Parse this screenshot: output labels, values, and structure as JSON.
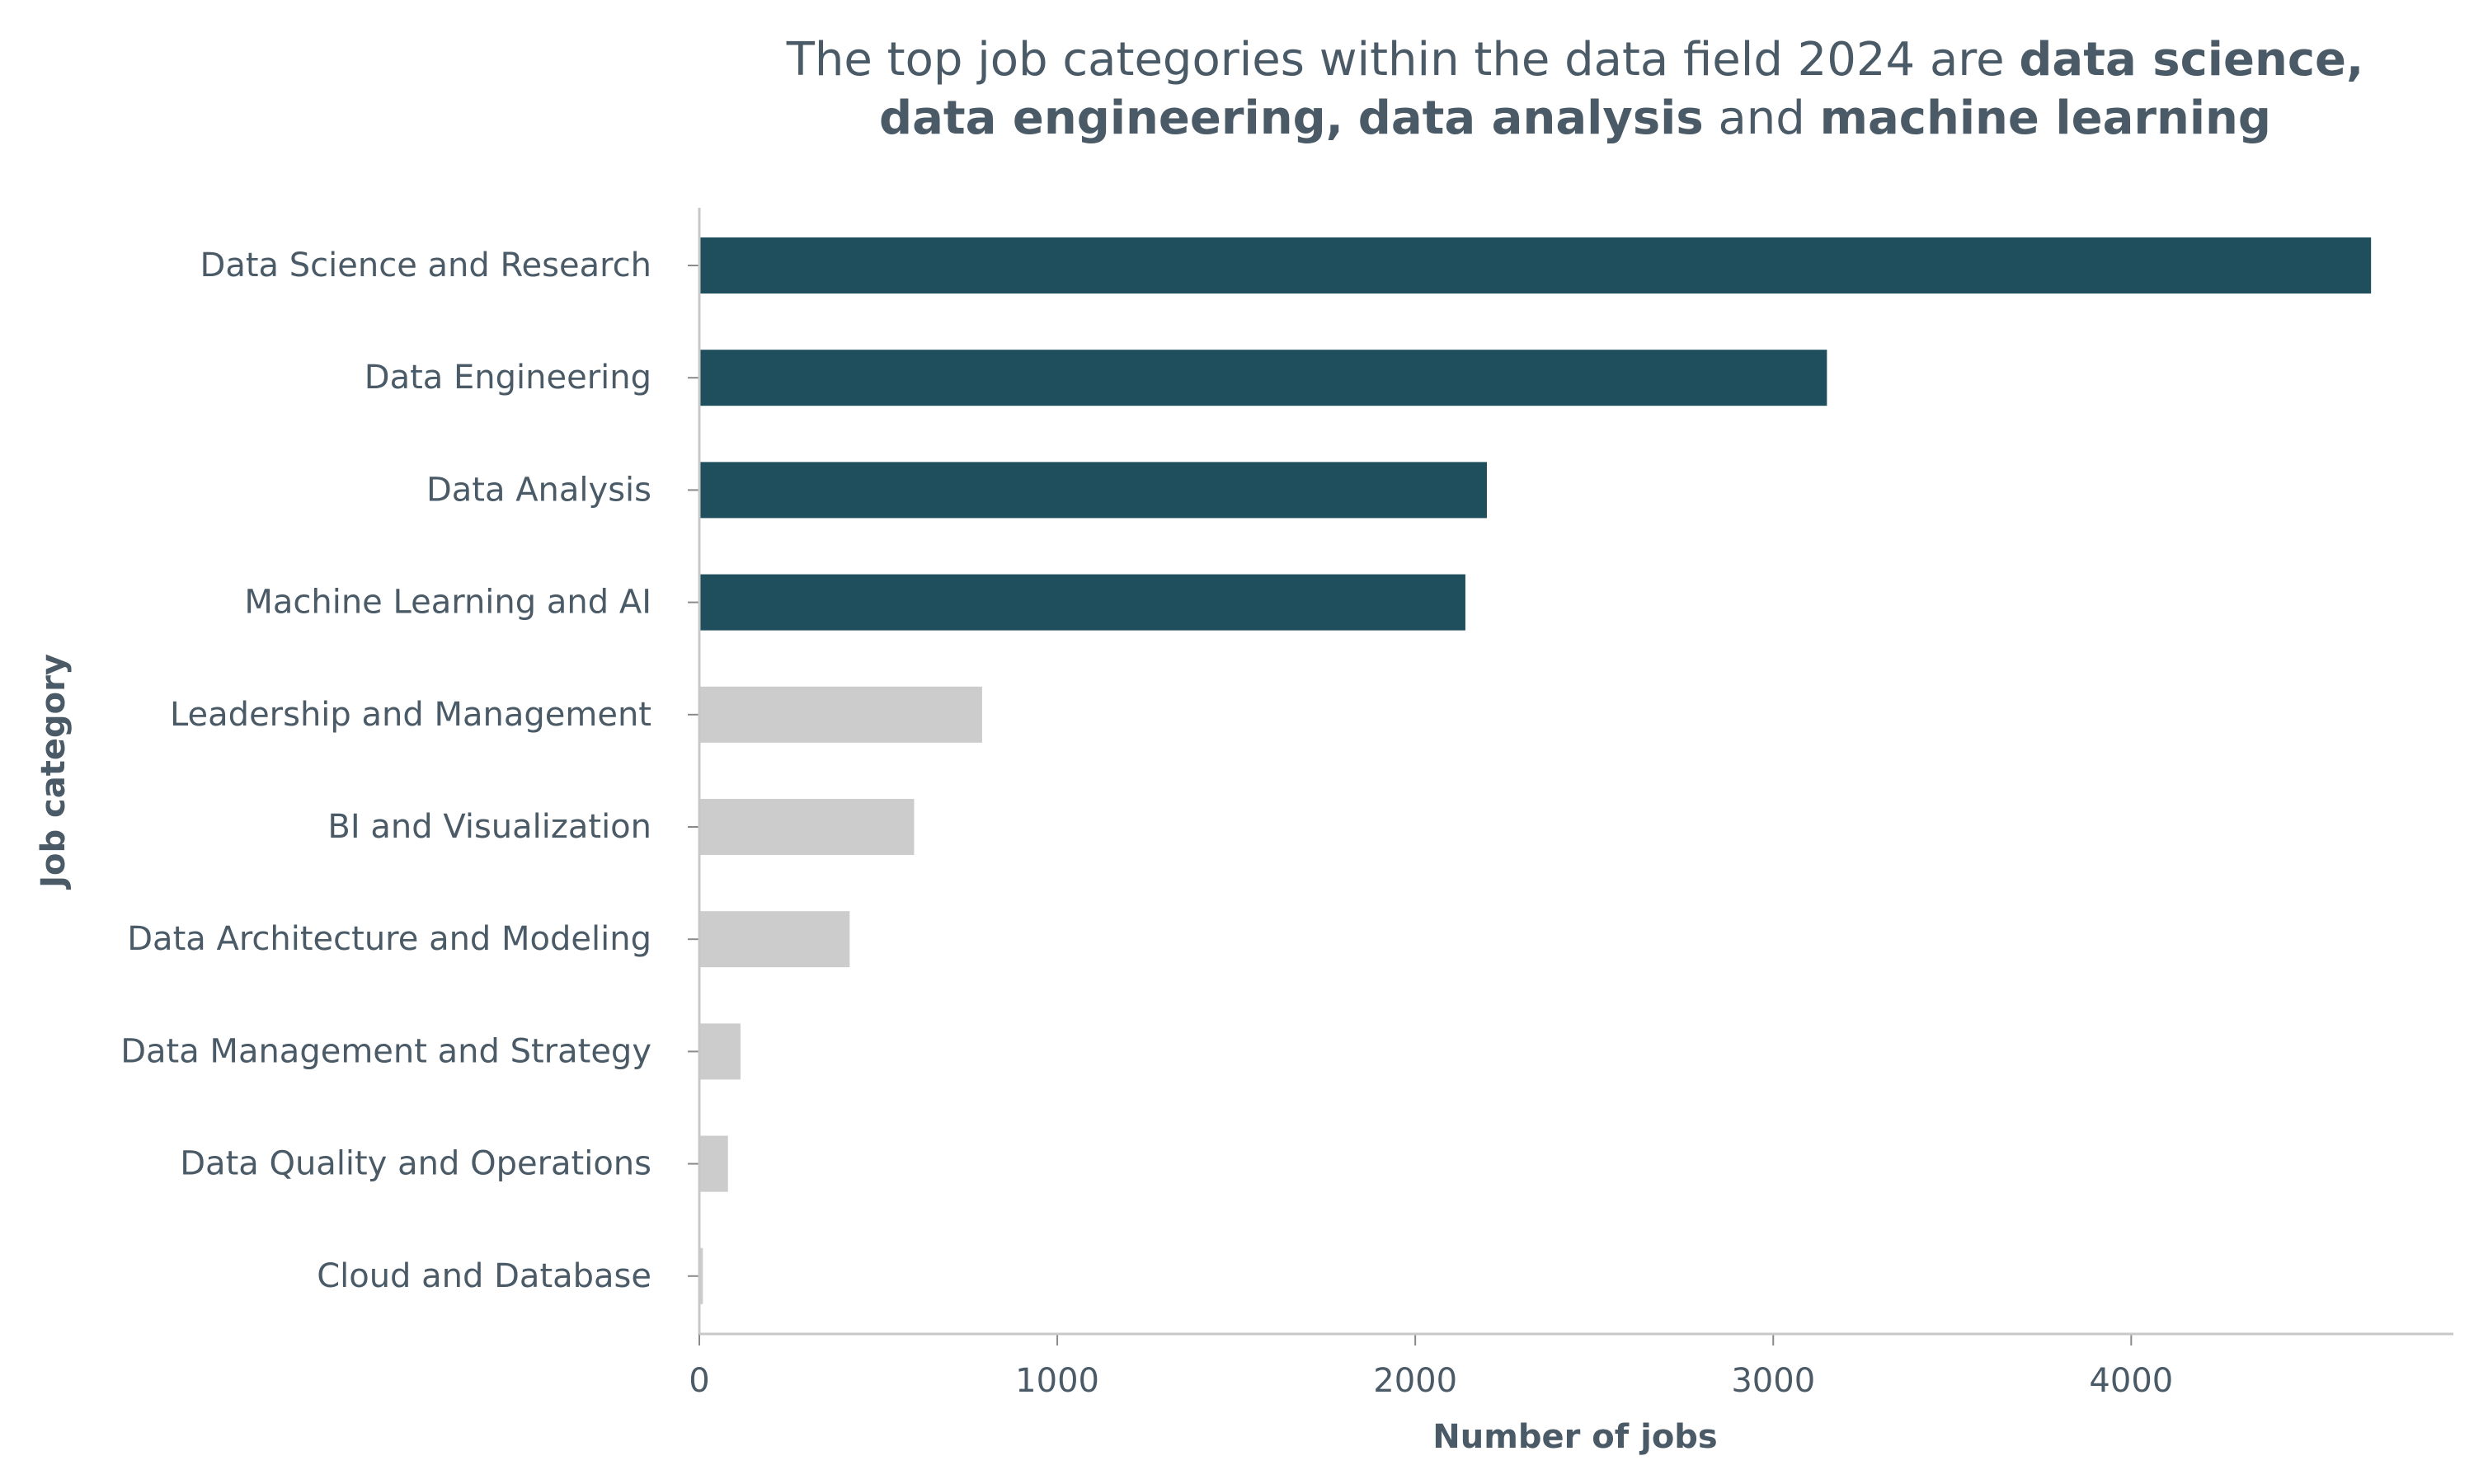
{
  "chart_data": {
    "type": "bar",
    "orientation": "horizontal",
    "title": {
      "line1": [
        {
          "text": "The top job categories within the data field 2024 are ",
          "bold": false
        },
        {
          "text": "data science,",
          "bold": true
        }
      ],
      "line2": [
        {
          "text": "data engineering,",
          "bold": true
        },
        {
          "text": " ",
          "bold": false
        },
        {
          "text": "data analysis",
          "bold": true
        },
        {
          "text": " and ",
          "bold": false
        },
        {
          "text": "machine learning",
          "bold": true
        }
      ]
    },
    "xlabel": "Number of jobs",
    "ylabel": "Job category",
    "xlim": [
      0,
      4900
    ],
    "xticks": [
      0,
      1000,
      2000,
      3000,
      4000
    ],
    "categories": [
      "Data Science and Research",
      "Data Engineering",
      "Data Analysis",
      "Machine Learning and AI",
      "Leadership and Management",
      "BI and Visualization",
      "Data Architecture and Modeling",
      "Data Management and Strategy",
      "Data Quality and Operations",
      "Cloud and Database"
    ],
    "values": [
      4670,
      3150,
      2200,
      2140,
      790,
      600,
      420,
      115,
      80,
      10
    ],
    "highlight_count": 4,
    "colors": {
      "highlight": "#1f4e5c",
      "muted": "#cccccc",
      "text": "#4a5a66",
      "axis": "#c8c8c8"
    },
    "grid": false,
    "legend": "none"
  }
}
